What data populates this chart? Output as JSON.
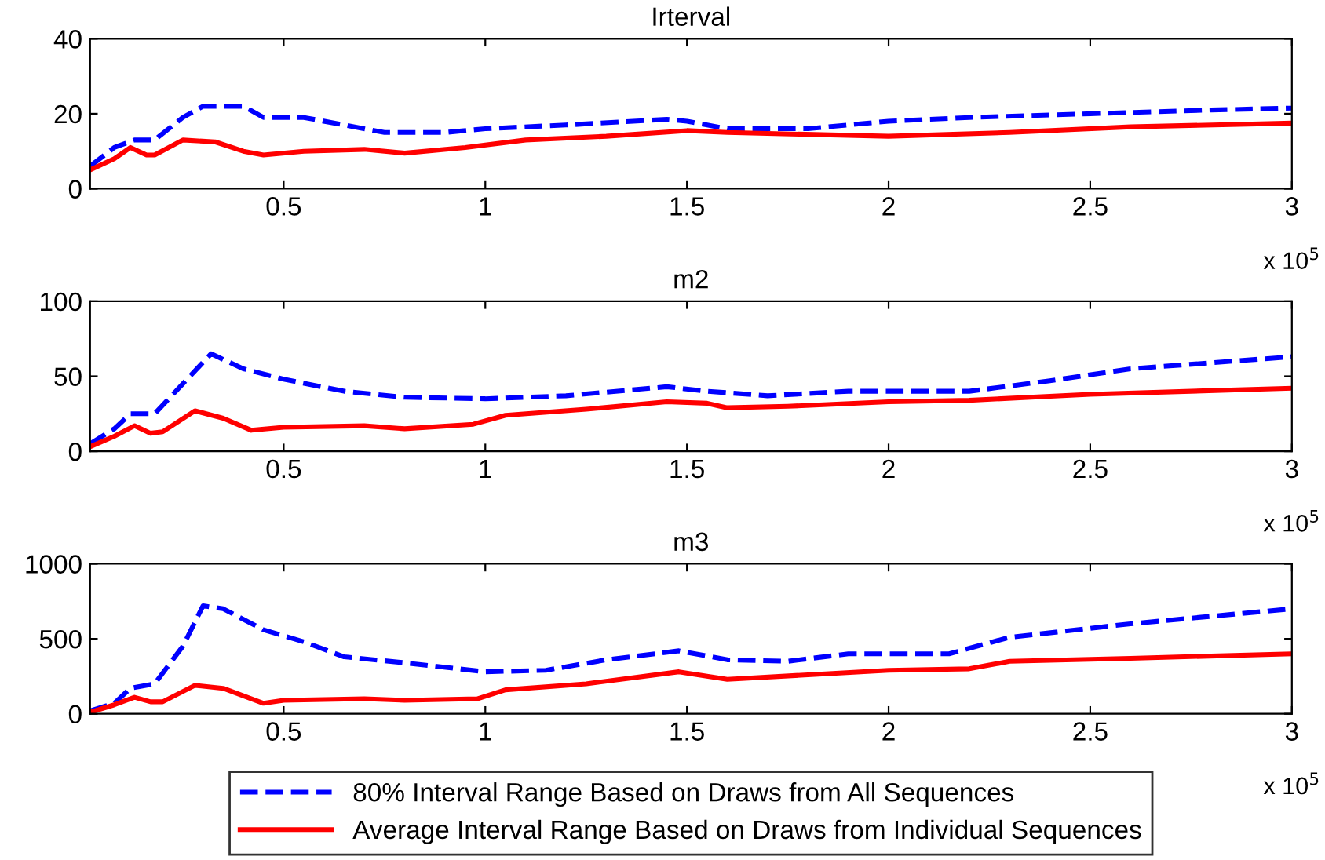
{
  "chart_data": [
    {
      "type": "line",
      "title": "Irterval",
      "xlim": [
        0.02,
        3
      ],
      "xticks": [
        0.5,
        1,
        1.5,
        2,
        2.5,
        3
      ],
      "ylim": [
        0,
        40
      ],
      "yticks": [
        0,
        20,
        40
      ],
      "grid": false,
      "annotations": [
        "x 10$^{5}$"
      ],
      "series": [
        {
          "color": "#0000ff",
          "line_style": "dashed",
          "x": [
            0.02,
            0.08,
            0.13,
            0.18,
            0.25,
            0.3,
            0.4,
            0.45,
            0.55,
            0.65,
            0.75,
            0.9,
            1.0,
            1.2,
            1.45,
            1.5,
            1.6,
            1.8,
            2.0,
            2.2,
            2.5,
            2.8,
            3.0
          ],
          "values": [
            6,
            11,
            13,
            13,
            19,
            22,
            22,
            19,
            19,
            17,
            15,
            15,
            16,
            17,
            18.5,
            18,
            16,
            16,
            18,
            19,
            20,
            21,
            21.5
          ]
        },
        {
          "color": "#ff0000",
          "line_style": "solid",
          "x": [
            0.02,
            0.08,
            0.12,
            0.16,
            0.18,
            0.25,
            0.33,
            0.4,
            0.45,
            0.55,
            0.7,
            0.8,
            0.95,
            1.1,
            1.3,
            1.5,
            1.6,
            2.0,
            2.3,
            2.6,
            3.0
          ],
          "values": [
            5,
            8,
            11,
            9,
            9,
            13,
            12.5,
            10,
            9,
            10,
            10.5,
            9.5,
            11,
            13,
            14,
            15.5,
            15,
            14,
            15,
            16.5,
            17.5
          ]
        }
      ]
    },
    {
      "type": "line",
      "title": "m2",
      "xlim": [
        0.02,
        3
      ],
      "xticks": [
        0.5,
        1,
        1.5,
        2,
        2.5,
        3
      ],
      "ylim": [
        0,
        100
      ],
      "yticks": [
        0,
        50,
        100
      ],
      "grid": false,
      "annotations": [
        "x 10$^{5}$"
      ],
      "series": [
        {
          "color": "#0000ff",
          "line_style": "dashed",
          "x": [
            0.02,
            0.08,
            0.12,
            0.18,
            0.25,
            0.32,
            0.4,
            0.5,
            0.65,
            0.8,
            1.0,
            1.2,
            1.45,
            1.55,
            1.7,
            1.9,
            2.2,
            2.4,
            2.6,
            3.0
          ],
          "values": [
            5,
            15,
            25,
            25,
            45,
            65,
            55,
            48,
            40,
            36,
            35,
            37,
            43,
            40,
            37,
            40,
            40,
            47,
            55,
            63
          ]
        },
        {
          "color": "#ff0000",
          "line_style": "solid",
          "x": [
            0.02,
            0.08,
            0.13,
            0.17,
            0.2,
            0.28,
            0.35,
            0.42,
            0.5,
            0.7,
            0.8,
            0.97,
            1.05,
            1.25,
            1.45,
            1.55,
            1.6,
            1.75,
            2.0,
            2.2,
            2.5,
            3.0
          ],
          "values": [
            3,
            10,
            17,
            12,
            13,
            27,
            22,
            14,
            16,
            17,
            15,
            18,
            24,
            28,
            33,
            32,
            29,
            30,
            33,
            34,
            38,
            42
          ]
        }
      ]
    },
    {
      "type": "line",
      "title": "m3",
      "xlim": [
        0.02,
        3
      ],
      "xticks": [
        0.5,
        1,
        1.5,
        2,
        2.5,
        3
      ],
      "ylim": [
        0,
        1000
      ],
      "yticks": [
        0,
        500,
        1000
      ],
      "grid": false,
      "annotations": [
        "x 10$^{5}$"
      ],
      "legend": "bottom",
      "series": [
        {
          "name": "80% Interval Range Based on Draws from All Sequences",
          "color": "#0000ff",
          "line_style": "dashed",
          "x": [
            0.02,
            0.08,
            0.12,
            0.18,
            0.25,
            0.3,
            0.35,
            0.45,
            0.55,
            0.65,
            0.8,
            1.0,
            1.15,
            1.3,
            1.48,
            1.6,
            1.75,
            1.9,
            2.15,
            2.3,
            2.6,
            3.0
          ],
          "values": [
            20,
            70,
            170,
            200,
            450,
            720,
            700,
            560,
            480,
            380,
            340,
            280,
            290,
            360,
            420,
            360,
            350,
            400,
            400,
            510,
            600,
            700
          ]
        },
        {
          "name": "Average Interval Range Based on Draws from Individual Sequences",
          "color": "#ff0000",
          "line_style": "solid",
          "x": [
            0.02,
            0.08,
            0.13,
            0.17,
            0.2,
            0.28,
            0.35,
            0.45,
            0.5,
            0.7,
            0.8,
            0.98,
            1.05,
            1.25,
            1.48,
            1.6,
            1.8,
            2.0,
            2.2,
            2.3,
            2.6,
            3.0
          ],
          "values": [
            10,
            60,
            110,
            80,
            80,
            190,
            170,
            70,
            90,
            100,
            90,
            100,
            160,
            200,
            280,
            230,
            260,
            290,
            300,
            350,
            370,
            400
          ]
        }
      ]
    }
  ]
}
